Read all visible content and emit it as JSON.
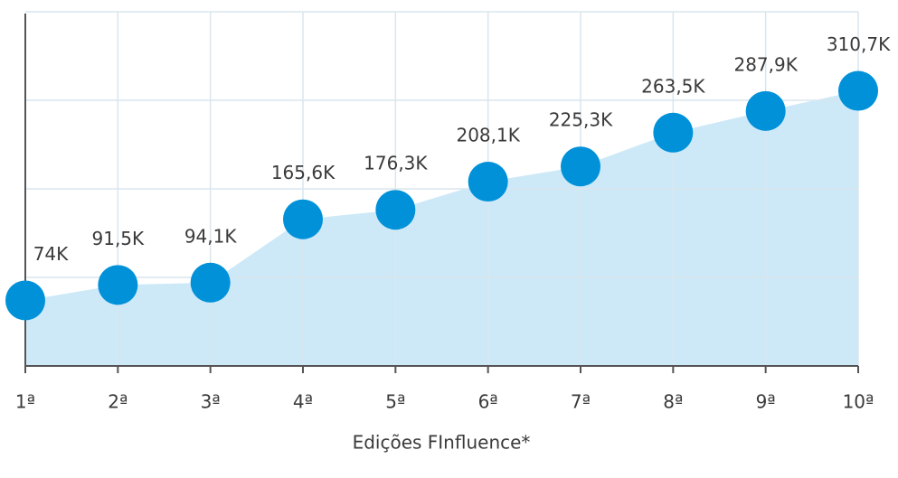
{
  "chart_data": {
    "type": "area",
    "x_label": "Edições FInfluence*",
    "categories": [
      "1ª",
      "2ª",
      "3ª",
      "4ª",
      "5ª",
      "6ª",
      "7ª",
      "8ª",
      "9ª",
      "10ª"
    ],
    "values": [
      74,
      91.5,
      94.1,
      165.6,
      176.3,
      208.1,
      225.3,
      263.5,
      287.9,
      310.7
    ],
    "value_labels": [
      "74K",
      "91,5K",
      "94,1K",
      "165,6K",
      "176,3K",
      "208,1K",
      "225,3K",
      "263,5K",
      "287,9K",
      "310,7K"
    ],
    "color": "#0091d9",
    "fill_color": "#cde9f8",
    "ylim": [
      0,
      400
    ],
    "yticks": [
      0,
      100,
      200,
      300,
      400
    ],
    "grid": true
  }
}
